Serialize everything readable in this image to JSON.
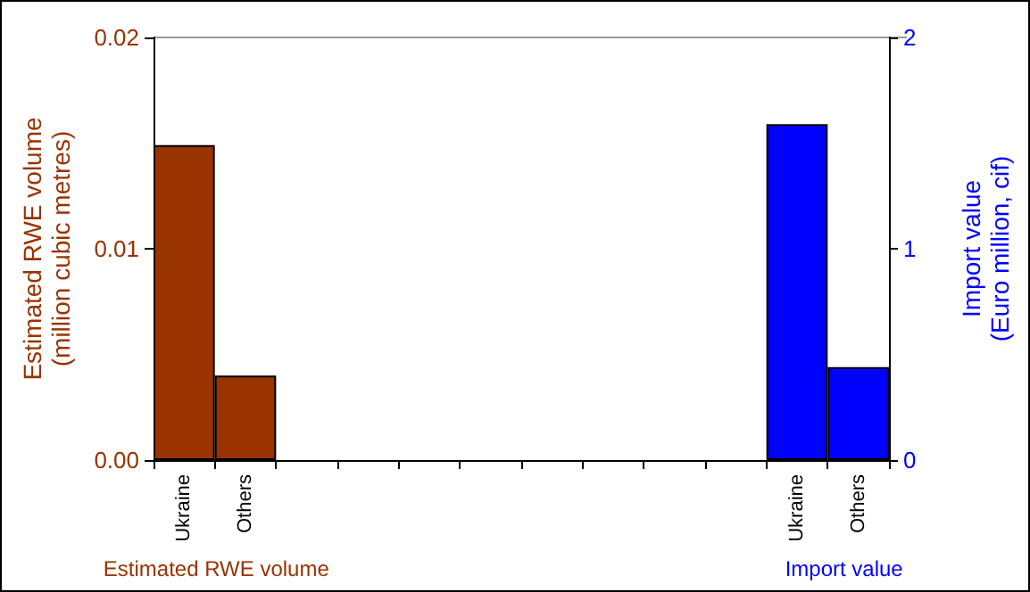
{
  "chart_data": {
    "type": "bar",
    "categories": [
      "Ukraine",
      "Others",
      null,
      null,
      null,
      null,
      null,
      null,
      null,
      null,
      "Ukraine",
      "Others"
    ],
    "series": [
      {
        "name": "Estimated RWE volume",
        "color": "#993300",
        "values": [
          0.0149,
          0.004,
          null,
          null,
          null,
          null,
          null,
          null,
          null,
          null,
          null,
          null
        ]
      },
      {
        "name": "Import value",
        "color": "#0000ff",
        "axis": "y2",
        "values": [
          null,
          null,
          null,
          null,
          null,
          null,
          null,
          null,
          null,
          null,
          1.59,
          0.44
        ]
      }
    ],
    "ylabel": "Estimated RWE volume\n(million cubic metres)",
    "y2label": "Import value\n(Euro million, cif)",
    "ylim": [
      0,
      0.02
    ],
    "yticks": [
      {
        "value": 0,
        "label": "0.00"
      },
      0.01,
      0.02
    ],
    "y2lim": [
      0,
      2
    ],
    "y2ticks": [
      0,
      1,
      2
    ],
    "grid": false,
    "legend": "bottom"
  }
}
